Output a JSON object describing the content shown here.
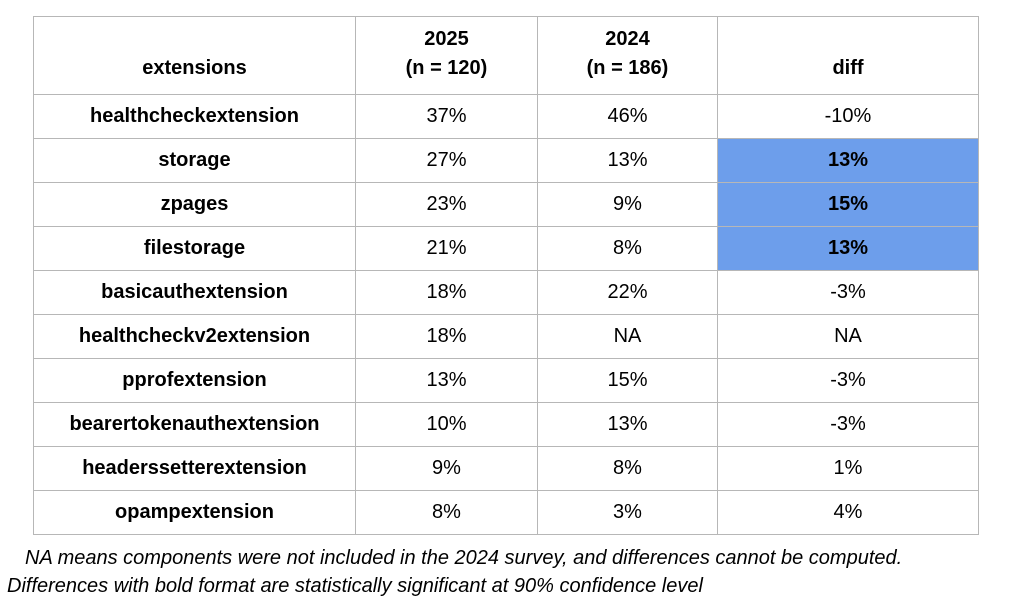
{
  "chart_data": {
    "type": "table",
    "header": {
      "extensions": "extensions",
      "y2025_line1": "2025",
      "y2025_line2": "(n = 120)",
      "y2024_line1": "2024",
      "y2024_line2": "(n = 186)",
      "diff": "diff"
    },
    "columns": [
      "extensions",
      "2025 (n = 120)",
      "2024 (n = 186)",
      "diff"
    ],
    "rows": [
      {
        "extension": "healthcheckextension",
        "v2025": "37%",
        "v2024": "46%",
        "diff": "-10%",
        "highlight": false
      },
      {
        "extension": "storage",
        "v2025": "27%",
        "v2024": "13%",
        "diff": "13%",
        "highlight": true
      },
      {
        "extension": "zpages",
        "v2025": "23%",
        "v2024": "9%",
        "diff": "15%",
        "highlight": true
      },
      {
        "extension": "filestorage",
        "v2025": "21%",
        "v2024": "8%",
        "diff": "13%",
        "highlight": true
      },
      {
        "extension": "basicauthextension",
        "v2025": "18%",
        "v2024": "22%",
        "diff": "-3%",
        "highlight": false
      },
      {
        "extension": "healthcheckv2extension",
        "v2025": "18%",
        "v2024": "NA",
        "diff": "NA",
        "highlight": false
      },
      {
        "extension": "pprofextension",
        "v2025": "13%",
        "v2024": "15%",
        "diff": "-3%",
        "highlight": false
      },
      {
        "extension": "bearertokenauthextension",
        "v2025": "10%",
        "v2024": "13%",
        "diff": "-3%",
        "highlight": false
      },
      {
        "extension": "headerssetterextension",
        "v2025": "9%",
        "v2024": "8%",
        "diff": "1%",
        "highlight": false
      },
      {
        "extension": "opampextension",
        "v2025": "8%",
        "v2024": "3%",
        "diff": "4%",
        "highlight": false
      }
    ],
    "notes": [
      "NA means components were not included in the 2024 survey, and differences cannot be computed.",
      "Differences with bold format are statistically significant at 90% confidence level"
    ],
    "colors": {
      "highlight_fill": "#6d9eeb",
      "border": "#b7b7b7",
      "text": "#000000"
    },
    "legend_note": "bold + blue fill = statistically significant at 90% confidence"
  }
}
